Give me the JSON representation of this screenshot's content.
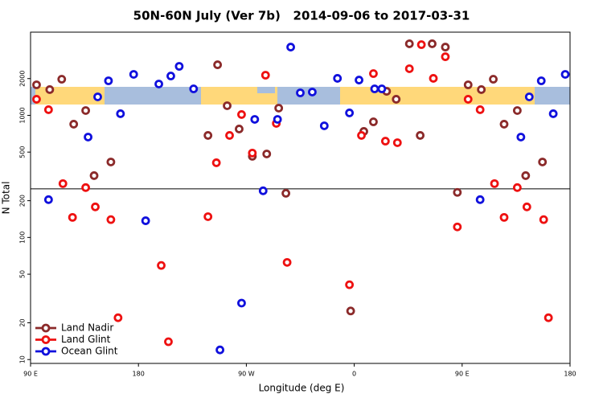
{
  "chart_data": {
    "type": "scatter",
    "title": "50N-60N July (Ver 7b)   2014-09-06 to 2017-03-31",
    "x_label": "Longitude (deg E)",
    "y_label": "N Total",
    "xlim": [
      90,
      540
    ],
    "xticks": [
      {
        "value": 90,
        "label": "90 E"
      },
      180,
      {
        "value": 270,
        "label": "90 W"
      },
      {
        "value": 360,
        "label": "0"
      },
      {
        "value": 450,
        "label": "90 E"
      },
      {
        "value": 540,
        "label": "180"
      }
    ],
    "ylim": [
      9.3,
      4800
    ],
    "y_log": true,
    "yticks": [
      10,
      20,
      50,
      100,
      200,
      500,
      1000,
      2000
    ],
    "reference_line": 250,
    "legend": "lower left",
    "series": [
      {
        "name": "Land Nadir",
        "color": "#8b2a2a",
        "x": [
          95,
          106,
          116,
          126,
          136,
          143,
          157,
          246,
          254,
          264,
          275,
          287,
          297,
          303,
          376,
          368,
          387,
          395,
          406,
          425,
          436,
          415,
          455,
          466,
          476,
          485,
          496,
          503,
          517,
          446,
          238,
          357
        ],
        "values": [
          1778,
          1625,
          1977,
          847,
          1095,
          321,
          415,
          2595,
          1199,
          773,
          462,
          483,
          1146,
          230,
          885,
          739,
          1574,
          1355,
          3855,
          3855,
          3622,
          685,
          1778,
          1625,
          1977,
          847,
          1095,
          321,
          415,
          234,
          685,
          25
        ]
      },
      {
        "name": "Land Glint",
        "color": "#ee1111",
        "x": [
          95,
          105,
          117,
          125,
          136,
          144,
          157,
          163,
          199,
          205,
          238,
          245,
          256,
          266,
          275,
          286,
          295,
          304,
          356,
          366,
          376,
          386,
          396,
          406,
          416,
          426,
          436,
          455,
          465,
          477,
          485,
          496,
          504,
          518,
          522,
          446
        ],
        "values": [
          1355,
          1112,
          276,
          146,
          256,
          178,
          140,
          22,
          59,
          14,
          148,
          409,
          685,
          1016,
          491,
          2133,
          859,
          62.5,
          41,
          685,
          2198,
          615,
          597,
          2409,
          3793,
          2009,
          3020,
          1355,
          1112,
          276,
          146,
          256,
          178,
          140,
          22,
          122
        ]
      },
      {
        "name": "Ocean Glint",
        "color": "#1010dd",
        "x": [
          105,
          138,
          146,
          155,
          165,
          176,
          186,
          197,
          207,
          214,
          226,
          248,
          266,
          277,
          284,
          296,
          307,
          315,
          325,
          335,
          346,
          356,
          364,
          377,
          383,
          465,
          499,
          506,
          516,
          526,
          536
        ],
        "values": [
          204,
          664,
          1417,
          1918,
          1031,
          2166,
          137,
          1806,
          2100,
          2520,
          1648,
          12,
          29,
          927,
          241,
          927,
          3622,
          1528,
          1552,
          821,
          2009,
          1047,
          1946,
          1648,
          1648,
          204,
          664,
          1417,
          1918,
          1031,
          2166
        ]
      }
    ]
  }
}
